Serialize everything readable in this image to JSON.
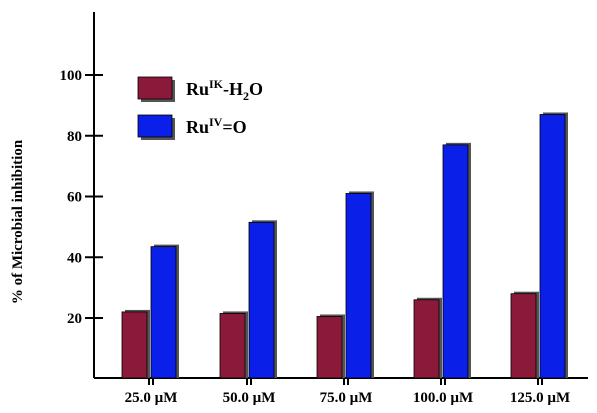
{
  "chart_data": {
    "type": "bar",
    "title": "",
    "xlabel": "",
    "ylabel": "% of Microbial inhibition",
    "categories": [
      "25.0 µM",
      "50.0 µM",
      "75.0 µM",
      "100.0 µM",
      "125.0 µM"
    ],
    "series": [
      {
        "name_main": "Ru",
        "name_sup": "IK",
        "name_rest": "-H",
        "name_sub": "2",
        "name_end": "O",
        "color": "#8b1a3a",
        "values": [
          22,
          21.5,
          20.5,
          26,
          28
        ]
      },
      {
        "name_main": "Ru",
        "name_sup": "IV",
        "name_rest": "=O",
        "name_sub": "",
        "name_end": "",
        "color": "#0a1fe8",
        "values": [
          43.5,
          51.5,
          61,
          77,
          87
        ]
      }
    ],
    "yticks": [
      20,
      40,
      60,
      80,
      100
    ],
    "ylim": [
      0,
      120
    ],
    "grid": false,
    "legend_position": "top-left"
  }
}
